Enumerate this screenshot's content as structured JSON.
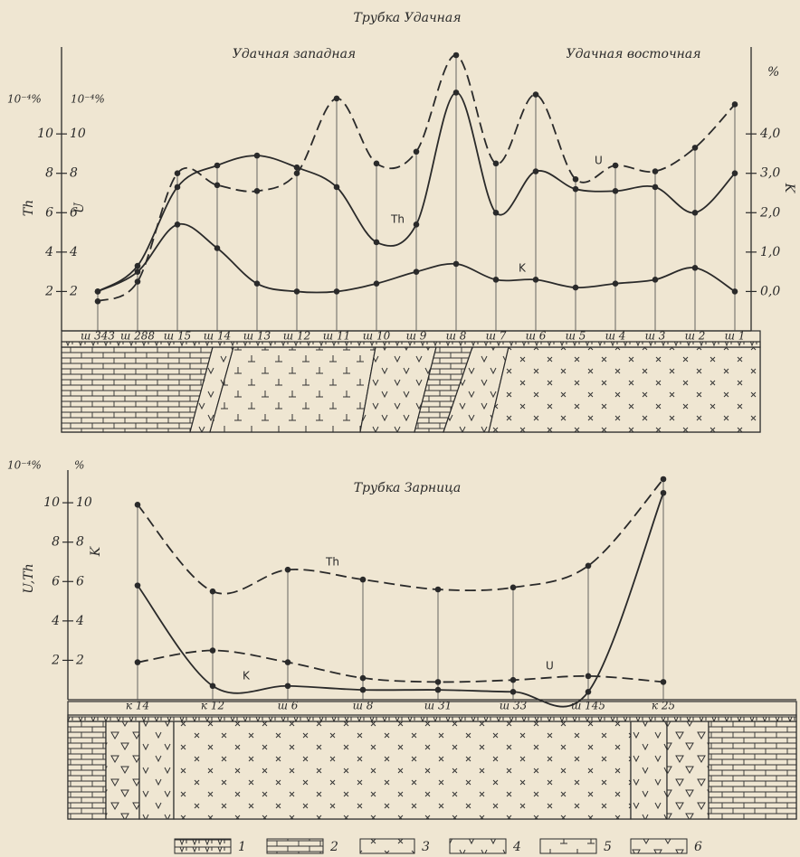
{
  "chart_data": [
    {
      "type": "line",
      "title": "Трубка Удачная",
      "subtitles": [
        "Удачная западная",
        "Удачная восточная"
      ],
      "y_unit": "10⁻⁴%",
      "y_unit_2": "10⁻⁴%",
      "y_label": "Th",
      "y_label_2": "U",
      "y2_unit": "%",
      "y2_label": "K",
      "categories": [
        "ш 343",
        "ш 288",
        "ш 15",
        "ш 14",
        "ш 13",
        "ш 12",
        "ш 11",
        "ш 10",
        "ш 9",
        "ш 8",
        "ш 7",
        "ш 6",
        "ш 5",
        "ш 4",
        "ш 3",
        "ш 2",
        "ш 1"
      ],
      "ylim": [
        0,
        14
      ],
      "yticks": [
        2,
        4,
        6,
        8,
        10
      ],
      "y2lim": [
        -1,
        6
      ],
      "y2ticks": [
        {
          "value": 0,
          "label": "0,0"
        },
        {
          "value": 1,
          "label": "1,0"
        },
        {
          "value": 2,
          "label": "2,0"
        },
        {
          "value": 3,
          "label": "3,0"
        },
        {
          "value": 4,
          "label": "4,0"
        }
      ],
      "series": [
        {
          "name": "Th",
          "color": "#2a2a2a",
          "style": "solid",
          "values": [
            2.0,
            3.3,
            7.3,
            8.4,
            8.9,
            8.3,
            7.3,
            4.5,
            5.4,
            12.1,
            6.0,
            8.1,
            7.2,
            7.1,
            7.3,
            6.0,
            8.0
          ]
        },
        {
          "name": "U",
          "color": "#2a2a2a",
          "style": "dashed",
          "values": [
            1.5,
            2.5,
            8.0,
            7.4,
            7.1,
            8.0,
            11.8,
            8.5,
            9.1,
            14.0,
            8.5,
            12.0,
            7.7,
            8.4,
            8.1,
            9.3,
            11.5
          ]
        },
        {
          "name": "K",
          "color": "#2a2a2a",
          "style": "solid",
          "axis": "y2",
          "values": [
            0.0,
            0.5,
            1.7,
            1.1,
            0.2,
            0.0,
            0.0,
            0.2,
            0.5,
            0.7,
            0.3,
            0.3,
            0.1,
            0.2,
            0.3,
            0.6,
            0.0
          ]
        }
      ]
    },
    {
      "type": "line",
      "title": "Трубка Зарница",
      "y_unit": "10⁻⁴%",
      "y_unit_2": "%",
      "y_label": "U,Th",
      "y_label_2": "K",
      "categories": [
        "к 14",
        "к 12",
        "ш 6",
        "ш 8",
        "ш 31",
        "ш 33",
        "ш 145",
        "к 25"
      ],
      "ylim": [
        0,
        11.2
      ],
      "yticks": [
        2,
        4,
        6,
        8,
        10
      ],
      "series": [
        {
          "name": "Th",
          "color": "#2a2a2a",
          "style": "dashed",
          "values": [
            9.9,
            5.5,
            6.6,
            6.1,
            5.6,
            5.7,
            6.8,
            11.2
          ]
        },
        {
          "name": "U",
          "color": "#2a2a2a",
          "style": "dashed",
          "values": [
            1.9,
            2.5,
            1.9,
            1.1,
            0.9,
            1.0,
            1.2,
            0.9
          ]
        },
        {
          "name": "K",
          "color": "#2a2a2a",
          "style": "solid",
          "values": [
            5.8,
            0.7,
            0.7,
            0.5,
            0.5,
            0.4,
            0.4,
            10.5
          ]
        }
      ]
    }
  ],
  "legend": {
    "items": [
      "1",
      "2",
      "3",
      "4",
      "5",
      "6"
    ]
  }
}
